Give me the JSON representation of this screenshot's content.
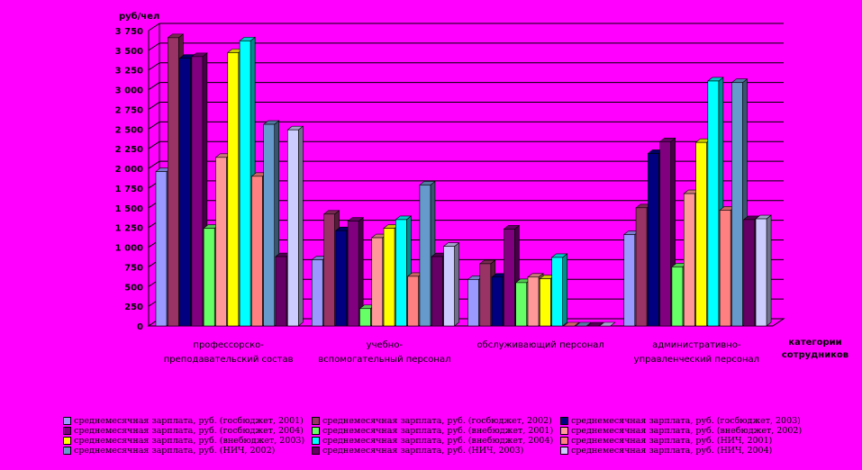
{
  "chart_data": {
    "type": "bar",
    "title": "",
    "ylabel": "руб/чел",
    "xlabel": "категории сотрудников",
    "ylim": [
      0,
      3750
    ],
    "yticks": [
      0,
      250,
      500,
      750,
      1000,
      1250,
      1500,
      1750,
      2000,
      2250,
      2500,
      2750,
      3000,
      3250,
      3500,
      3750
    ],
    "grid": true,
    "legend_position": "bottom",
    "categories": [
      "профессорско-преподавательский состав",
      "учебно-вспомогательный персонал",
      "обслуживающий персонал",
      "административно-управленческий персонал"
    ],
    "series": [
      {
        "name": "среднемесячная зарплата, руб. (госбюджет, 2001)",
        "color": "#9999FF",
        "values": [
          1960,
          840,
          590,
          1160
        ]
      },
      {
        "name": "среднемесячная зарплата, руб. (госбюджет, 2002)",
        "color": "#993366",
        "values": [
          3660,
          1420,
          790,
          1500
        ]
      },
      {
        "name": "среднемесячная зарплата, руб. (госбюджет, 2003)",
        "color": "#000080",
        "values": [
          3400,
          1210,
          620,
          2190
        ]
      },
      {
        "name": "среднемесячная зарплата, руб. (госбюджет, 2004)",
        "color": "#800080",
        "values": [
          3420,
          1330,
          1230,
          2340
        ]
      },
      {
        "name": "среднемесячная зарплата, руб. (внебюджет, 2001)",
        "color": "#66FF66",
        "values": [
          1240,
          220,
          550,
          750
        ]
      },
      {
        "name": "среднемесячная зарплата, руб. (внебюджет, 2002)",
        "color": "#FF9999",
        "values": [
          2140,
          1120,
          620,
          1680
        ]
      },
      {
        "name": "среднемесячная зарплата, руб. (внебюджет, 2003)",
        "color": "#FFFF00",
        "values": [
          3470,
          1240,
          600,
          2330
        ]
      },
      {
        "name": "среднемесячная зарплата, руб. (внебюджет, 2004)",
        "color": "#00FFFF",
        "values": [
          3620,
          1350,
          870,
          3110
        ]
      },
      {
        "name": "среднемесячная зарплата, руб. (НИЧ, 2001)",
        "color": "#FF8080",
        "values": [
          1900,
          630,
          0,
          1470
        ]
      },
      {
        "name": "среднемесячная зарплата, руб. (НИЧ, 2002)",
        "color": "#6699CC",
        "values": [
          2560,
          1790,
          0,
          3090
        ]
      },
      {
        "name": "среднемесячная зарплата, руб. (НИЧ, 2003)",
        "color": "#660066",
        "values": [
          880,
          880,
          0,
          1350
        ]
      },
      {
        "name": "среднемесячная зарплата, руб. (НИЧ, 2004)",
        "color": "#CCCCFF",
        "values": [
          2490,
          1010,
          0,
          1360
        ]
      }
    ]
  }
}
